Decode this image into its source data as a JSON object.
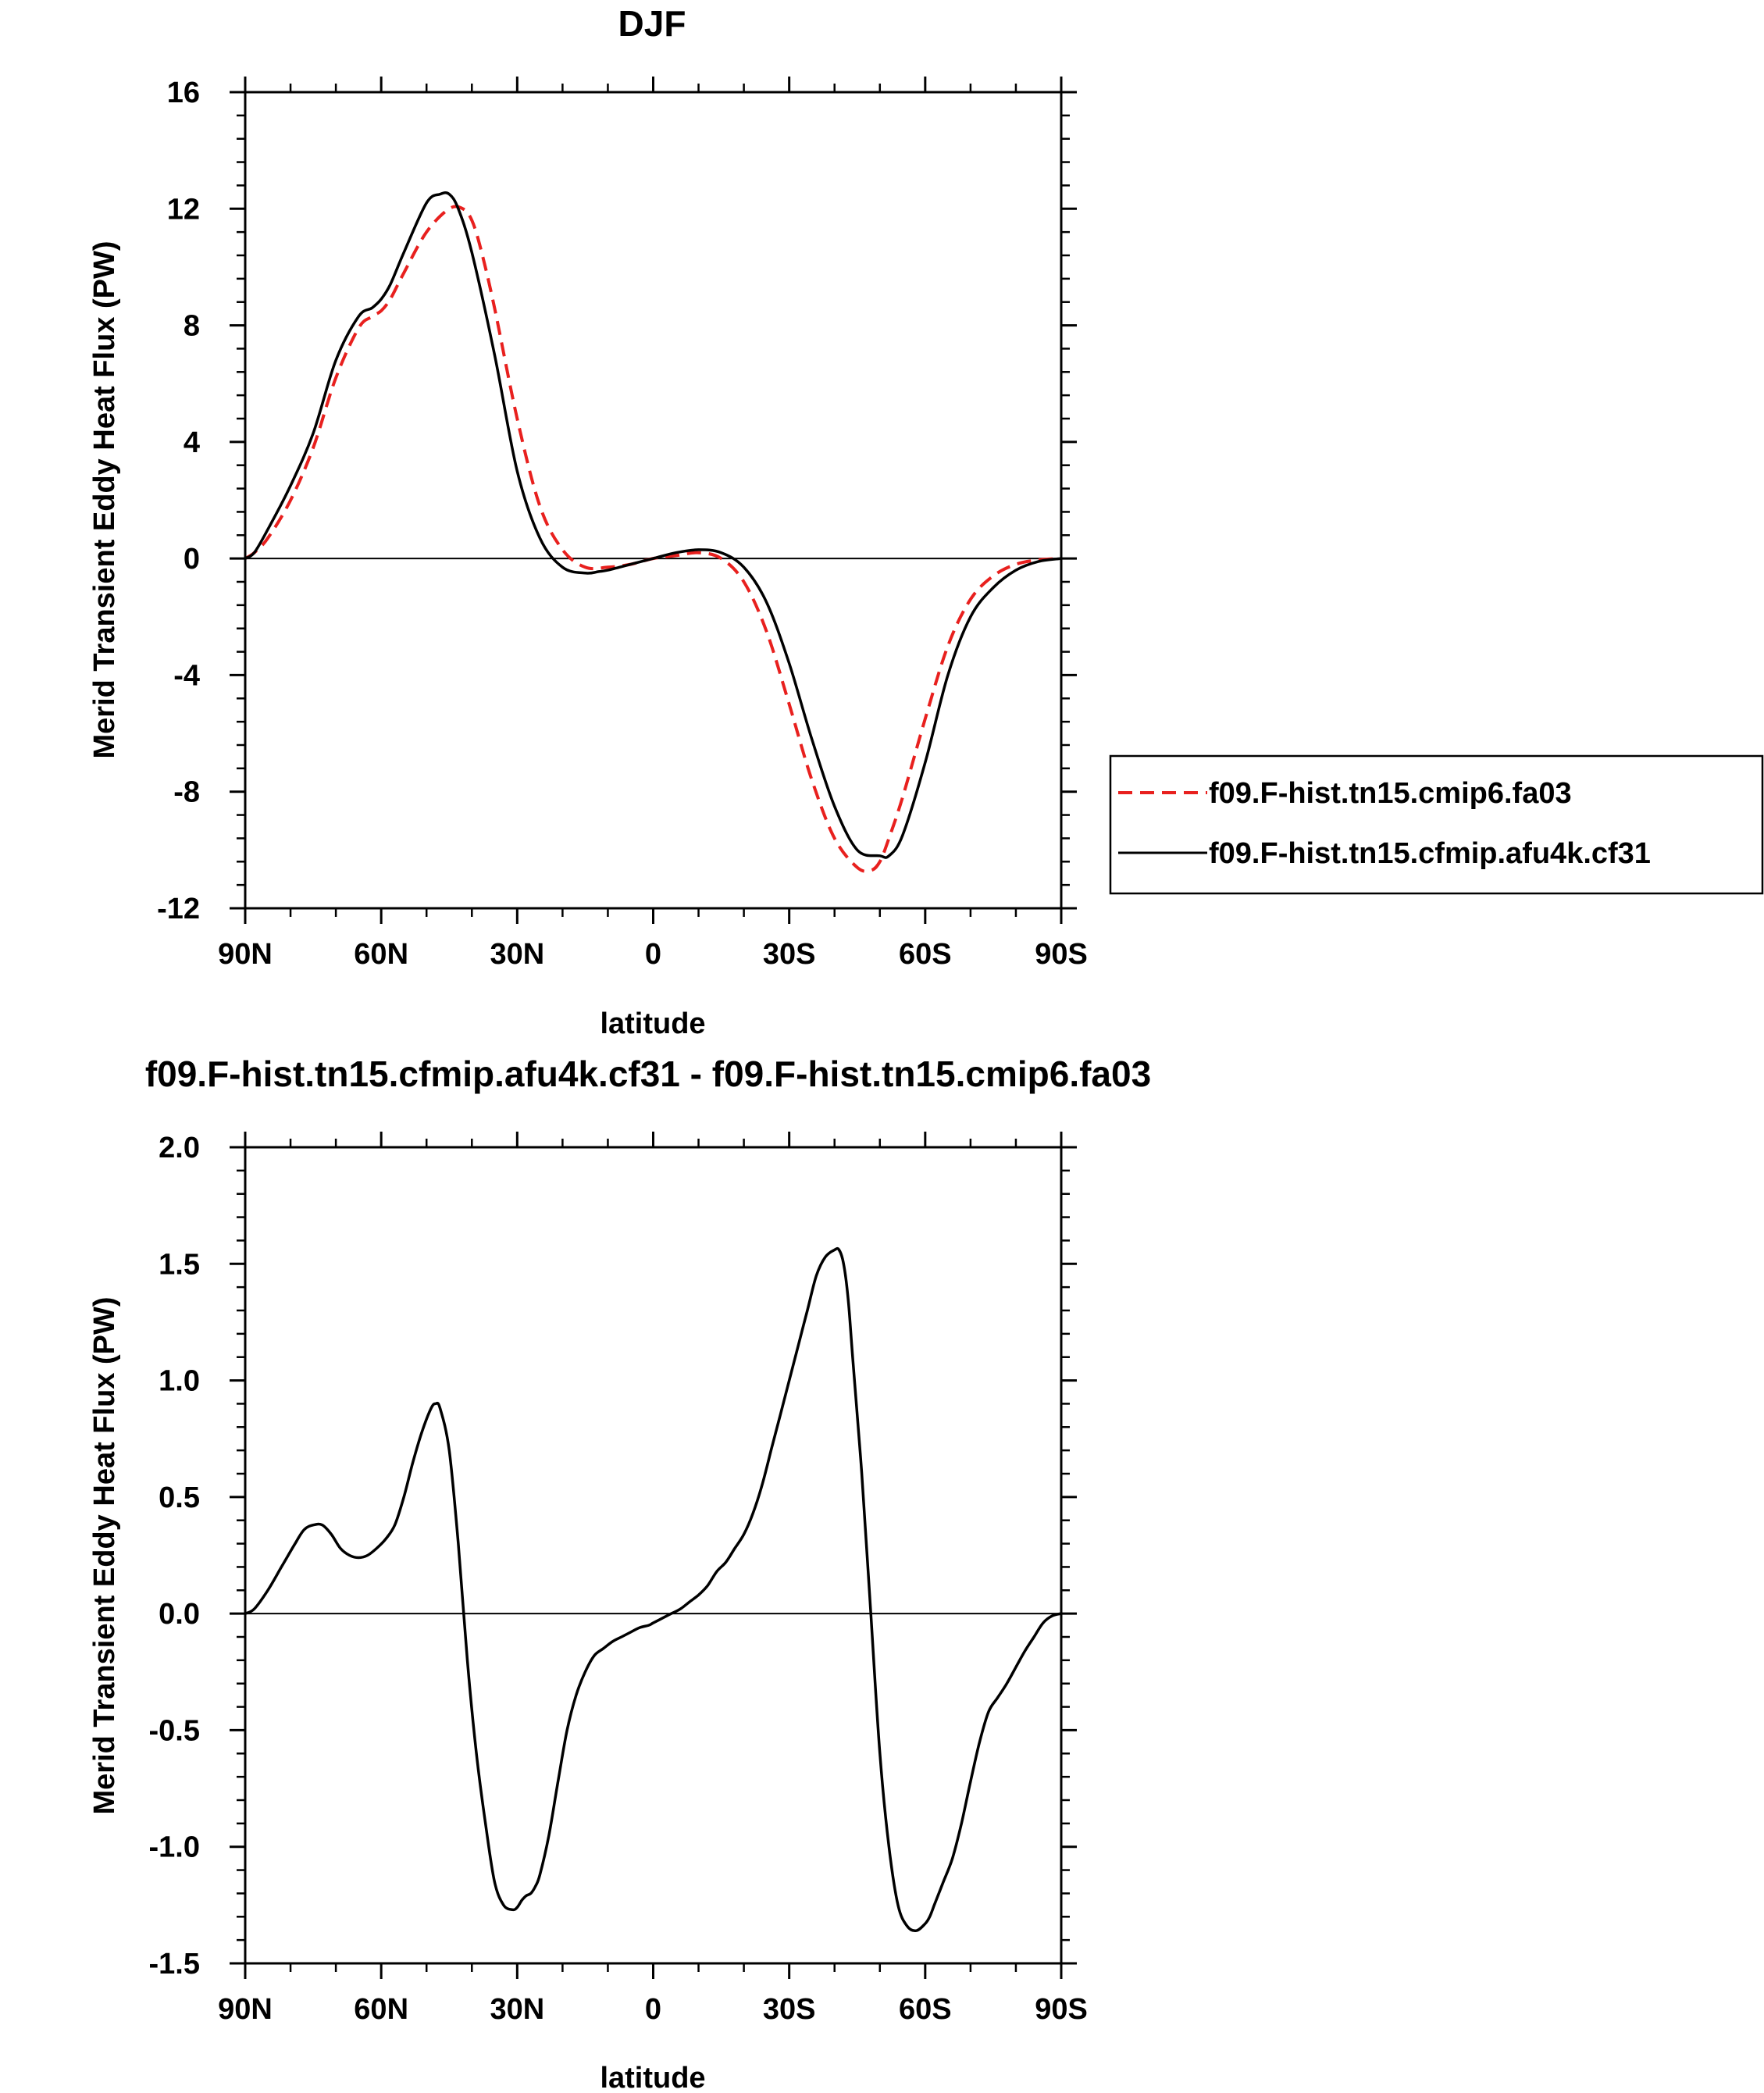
{
  "chart_data": [
    {
      "type": "line",
      "title": "DJF",
      "xlabel": "latitude",
      "ylabel": "Merid Transient Eddy Heat Flux (PW)",
      "xlim": [
        90,
        -90
      ],
      "ylim": [
        -12,
        16
      ],
      "xticks": [
        90,
        60,
        30,
        0,
        -30,
        -60,
        -90
      ],
      "xtick_labels": [
        "90N",
        "60N",
        "30N",
        "0",
        "30S",
        "60S",
        "90S"
      ],
      "yticks": [
        -12,
        -8,
        -4,
        0,
        4,
        8,
        12,
        16
      ],
      "ytick_labels": [
        "-12",
        "-8",
        "-4",
        "0",
        "4",
        "8",
        "12",
        "16"
      ],
      "legend_position": "right",
      "series": [
        {
          "name": "f09.F-hist.tn15.cmip6.fa03",
          "color": "#e8201e",
          "dash": "dashed",
          "x": [
            90,
            88,
            85,
            80,
            75,
            70,
            65,
            62,
            60,
            58,
            55,
            50,
            45,
            42,
            40,
            38,
            35,
            30,
            25,
            20,
            15,
            10,
            5,
            0,
            -5,
            -10,
            -15,
            -20,
            -25,
            -30,
            -35,
            -40,
            -45,
            -48,
            -50,
            -52,
            -55,
            -60,
            -65,
            -70,
            -75,
            -80,
            -85,
            -90
          ],
          "y": [
            0,
            0.2,
            0.7,
            2.0,
            3.8,
            6.2,
            7.9,
            8.3,
            8.5,
            8.9,
            9.8,
            11.2,
            12.0,
            12.0,
            11.6,
            10.6,
            8.6,
            4.8,
            1.8,
            0.3,
            -0.3,
            -0.3,
            -0.2,
            0,
            0.1,
            0.2,
            0,
            -0.8,
            -2.5,
            -5.0,
            -7.6,
            -9.6,
            -10.6,
            -10.7,
            -10.4,
            -9.6,
            -8.2,
            -5.5,
            -3.0,
            -1.4,
            -0.6,
            -0.2,
            -0.05,
            0
          ]
        },
        {
          "name": "f09.F-hist.tn15.cfmip.afu4k.cf31",
          "color": "#000000",
          "dash": "solid",
          "x": [
            90,
            88,
            85,
            80,
            75,
            70,
            65,
            62,
            60,
            58,
            55,
            50,
            47,
            45,
            43,
            40,
            35,
            30,
            25,
            20,
            15,
            12,
            10,
            5,
            0,
            -5,
            -10,
            -15,
            -20,
            -25,
            -30,
            -35,
            -40,
            -45,
            -50,
            -52,
            -55,
            -60,
            -65,
            -70,
            -75,
            -80,
            -85,
            -90
          ],
          "y": [
            0,
            0.2,
            1.0,
            2.5,
            4.3,
            6.8,
            8.3,
            8.6,
            8.9,
            9.4,
            10.5,
            12.2,
            12.5,
            12.5,
            12.0,
            10.5,
            7.0,
            3.0,
            0.7,
            -0.3,
            -0.5,
            -0.45,
            -0.4,
            -0.2,
            0,
            0.2,
            0.3,
            0.2,
            -0.3,
            -1.5,
            -3.6,
            -6.2,
            -8.5,
            -10.0,
            -10.2,
            -10.2,
            -9.5,
            -7.0,
            -4.0,
            -2.0,
            -1.0,
            -0.4,
            -0.1,
            0
          ]
        }
      ]
    },
    {
      "type": "line",
      "title": "f09.F-hist.tn15.cfmip.afu4k.cf31 - f09.F-hist.tn15.cmip6.fa03",
      "xlabel": "latitude",
      "ylabel": "Merid Transient Eddy Heat Flux (PW)",
      "xlim": [
        90,
        -90
      ],
      "ylim": [
        -1.5,
        2.0
      ],
      "xticks": [
        90,
        60,
        30,
        0,
        -30,
        -60,
        -90
      ],
      "xtick_labels": [
        "90N",
        "60N",
        "30N",
        "0",
        "30S",
        "60S",
        "90S"
      ],
      "yticks": [
        -1.5,
        -1.0,
        -0.5,
        0.0,
        0.5,
        1.0,
        1.5,
        2.0
      ],
      "ytick_labels": [
        "-1.5",
        "-1.0",
        "-0.5",
        "0.0",
        "0.5",
        "1.0",
        "1.5",
        "2.0"
      ],
      "series": [
        {
          "color": "#000000",
          "dash": "solid",
          "x": [
            90,
            88,
            85,
            82,
            79,
            77,
            75,
            73,
            71,
            69,
            67,
            65,
            63,
            61,
            59,
            57,
            55,
            53,
            51,
            49,
            48,
            47,
            45,
            43,
            41,
            39,
            37,
            35,
            33,
            31,
            30,
            29,
            28,
            27,
            26,
            25,
            23,
            21,
            19,
            17,
            15,
            13,
            11,
            9,
            7,
            5,
            3,
            1,
            0,
            -2,
            -4,
            -6,
            -8,
            -10,
            -12,
            -14,
            -16,
            -18,
            -20,
            -22,
            -24,
            -26,
            -28,
            -30,
            -32,
            -34,
            -36,
            -38,
            -40,
            -41,
            -42,
            -43,
            -44,
            -46,
            -48,
            -50,
            -52,
            -54,
            -56,
            -58,
            -60,
            -61,
            -62,
            -63,
            -64,
            -66,
            -68,
            -70,
            -72,
            -74,
            -76,
            -78,
            -80,
            -82,
            -84,
            -86,
            -88,
            -90
          ],
          "y": [
            0,
            0.02,
            0.1,
            0.2,
            0.3,
            0.36,
            0.38,
            0.38,
            0.34,
            0.28,
            0.25,
            0.24,
            0.25,
            0.28,
            0.32,
            0.38,
            0.5,
            0.65,
            0.78,
            0.88,
            0.9,
            0.88,
            0.7,
            0.3,
            -0.2,
            -0.6,
            -0.9,
            -1.15,
            -1.25,
            -1.27,
            -1.26,
            -1.23,
            -1.21,
            -1.2,
            -1.17,
            -1.12,
            -0.95,
            -0.72,
            -0.5,
            -0.35,
            -0.25,
            -0.18,
            -0.15,
            -0.12,
            -0.1,
            -0.08,
            -0.06,
            -0.05,
            -0.04,
            -0.02,
            0.0,
            0.02,
            0.05,
            0.08,
            0.12,
            0.18,
            0.22,
            0.28,
            0.34,
            0.43,
            0.55,
            0.7,
            0.85,
            1.0,
            1.15,
            1.3,
            1.45,
            1.53,
            1.56,
            1.56,
            1.5,
            1.35,
            1.1,
            0.6,
            0.0,
            -0.6,
            -1.0,
            -1.25,
            -1.34,
            -1.36,
            -1.33,
            -1.3,
            -1.25,
            -1.2,
            -1.15,
            -1.05,
            -0.9,
            -0.72,
            -0.55,
            -0.42,
            -0.36,
            -0.3,
            -0.23,
            -0.16,
            -0.1,
            -0.04,
            -0.01,
            0
          ]
        }
      ]
    }
  ]
}
